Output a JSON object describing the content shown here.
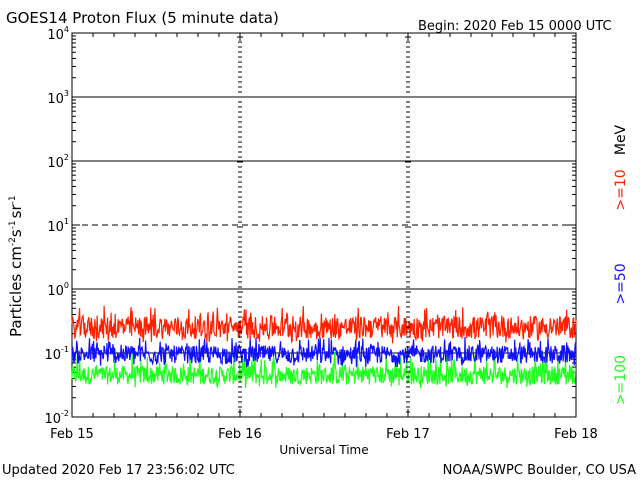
{
  "header": {
    "title": "GOES14 Proton Flux (5 minute data)",
    "begin": "Begin: 2020 Feb 15 0000 UTC"
  },
  "footer": {
    "updated": "Updated 2020 Feb 17 23:56:02 UTC",
    "source": "NOAA/SWPC Boulder, CO USA"
  },
  "colors": {
    "ge10": "#ff2000",
    "ge50": "#1010ff",
    "ge100": "#20ff20",
    "frame": "#000000"
  },
  "chart_data": {
    "type": "line",
    "xlabel": "Universal Time",
    "ylabel_parts": [
      "Particles cm",
      "-2",
      "s",
      "-1",
      "sr",
      "-1"
    ],
    "unit_label": "MeV",
    "x_ticks": [
      "Feb 15",
      "Feb 16",
      "Feb 17",
      "Feb 18"
    ],
    "xlim_days": [
      0,
      3
    ],
    "y_scale": "log",
    "ylim": [
      0.01,
      10000
    ],
    "y_ticks": [
      {
        "base": "10",
        "exp": "-2"
      },
      {
        "base": "10",
        "exp": "-1"
      },
      {
        "base": "10",
        "exp": "0"
      },
      {
        "base": "10",
        "exp": "1"
      },
      {
        "base": "10",
        "exp": "2"
      },
      {
        "base": "10",
        "exp": "3"
      },
      {
        "base": "10",
        "exp": "4"
      }
    ],
    "grid": "horizontal lines at each decade; 10^1 line dashed",
    "series": [
      {
        "name": ">=10",
        "color_key": "ge10",
        "typical": 0.25,
        "low": 0.14,
        "high": 0.55
      },
      {
        "name": ">=50",
        "color_key": "ge50",
        "typical": 0.095,
        "low": 0.06,
        "high": 0.18
      },
      {
        "name": ">=100",
        "color_key": "ge100",
        "typical": 0.045,
        "low": 0.028,
        "high": 0.11
      }
    ]
  }
}
